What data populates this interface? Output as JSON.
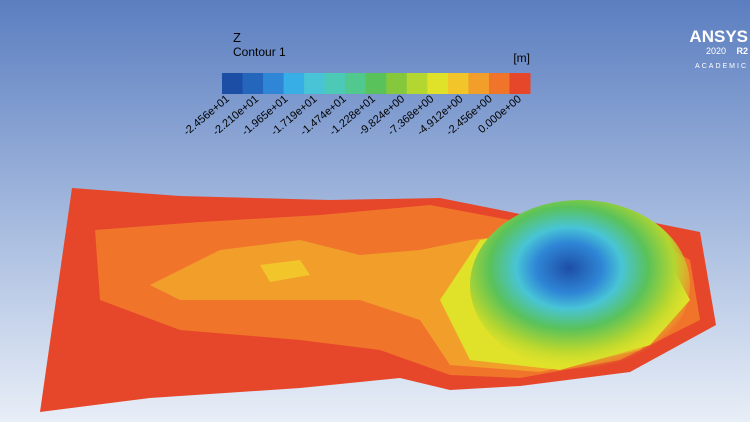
{
  "legend": {
    "variable": "Z",
    "title": "Contour 1",
    "unit": "[m]",
    "tick_labels": [
      "-2.456e+01",
      "-2.210e+01",
      "-1.965e+01",
      "-1.719e+01",
      "-1.474e+01",
      "-1.228e+01",
      "-9.824e+00",
      "-7.368e+00",
      "-4.912e+00",
      "-2.456e+00",
      "0.000e+00"
    ],
    "colors": [
      "#1d4ea6",
      "#2566bd",
      "#2f86d6",
      "#37aee6",
      "#48c4d6",
      "#4ccab6",
      "#50c88e",
      "#5ac25a",
      "#86c83c",
      "#b4d630",
      "#e0e22a",
      "#f2c62a",
      "#f29e2a",
      "#f0742a",
      "#e6462a"
    ]
  },
  "logo": {
    "brand": "ANSYS",
    "version": "2020",
    "release": "R2",
    "edition": "ACADEMIC"
  }
}
